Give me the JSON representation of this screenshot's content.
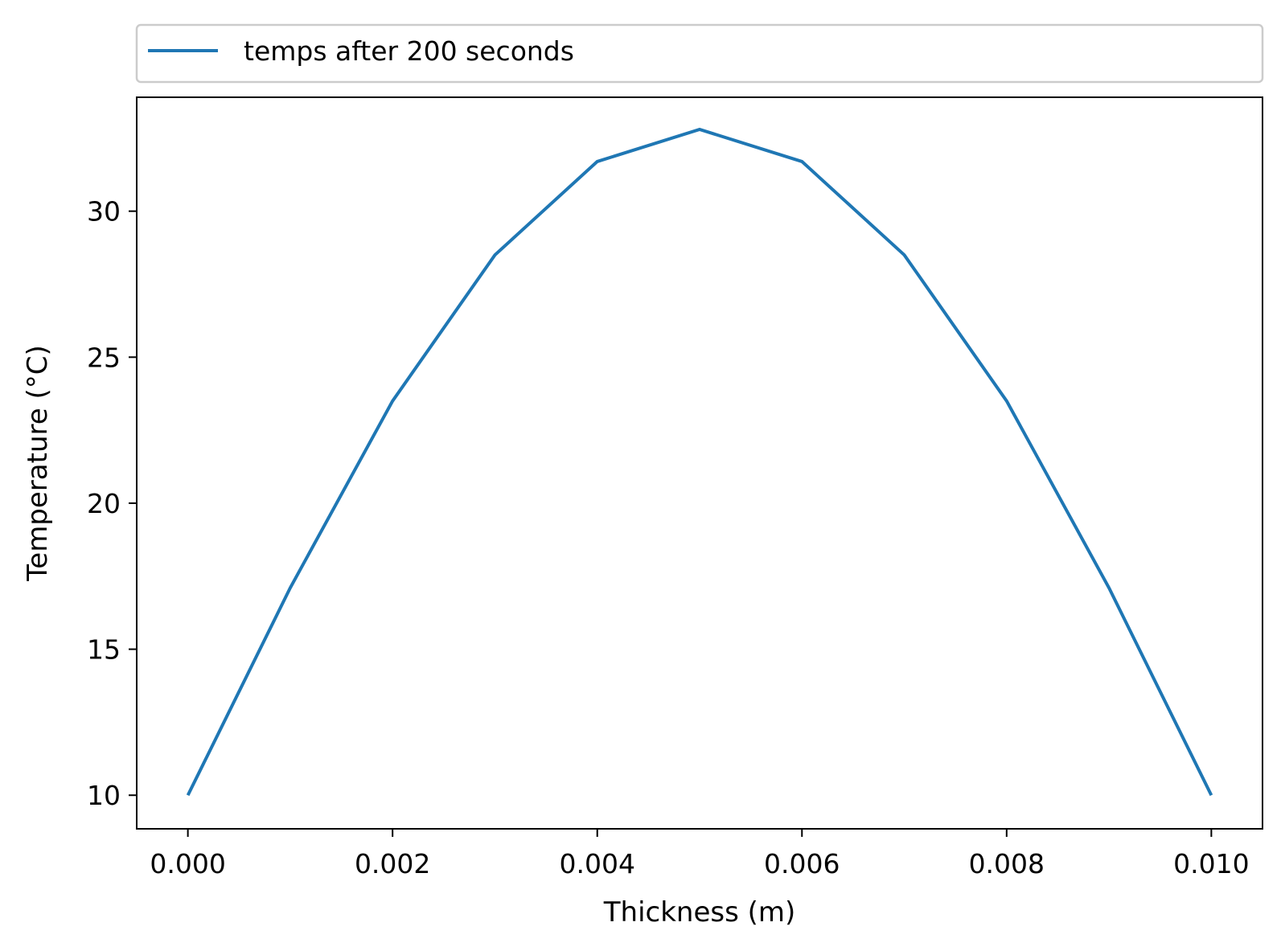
{
  "chart_data": {
    "type": "line",
    "title": "",
    "xlabel": "Thickness (m)",
    "ylabel": "Temperature (°C)",
    "xlim": [
      -0.0005,
      0.0105
    ],
    "ylim": [
      8.85,
      33.9
    ],
    "x_ticks": [
      0.0,
      0.002,
      0.004,
      0.006,
      0.008,
      0.01
    ],
    "x_tick_labels": [
      "0.000",
      "0.002",
      "0.004",
      "0.006",
      "0.008",
      "0.010"
    ],
    "y_ticks": [
      10,
      15,
      20,
      25,
      30
    ],
    "y_tick_labels": [
      "10",
      "15",
      "20",
      "25",
      "30"
    ],
    "grid": false,
    "legend_position": "above plot, full width",
    "series": [
      {
        "name": "temps after 200 seconds",
        "color": "#1f77b4",
        "x": [
          0.0,
          0.001,
          0.002,
          0.003,
          0.004,
          0.005,
          0.006,
          0.007,
          0.008,
          0.009,
          0.01
        ],
        "y": [
          10.0,
          17.1,
          23.5,
          28.5,
          31.7,
          32.8,
          31.7,
          28.5,
          23.5,
          17.1,
          10.0
        ]
      }
    ]
  }
}
